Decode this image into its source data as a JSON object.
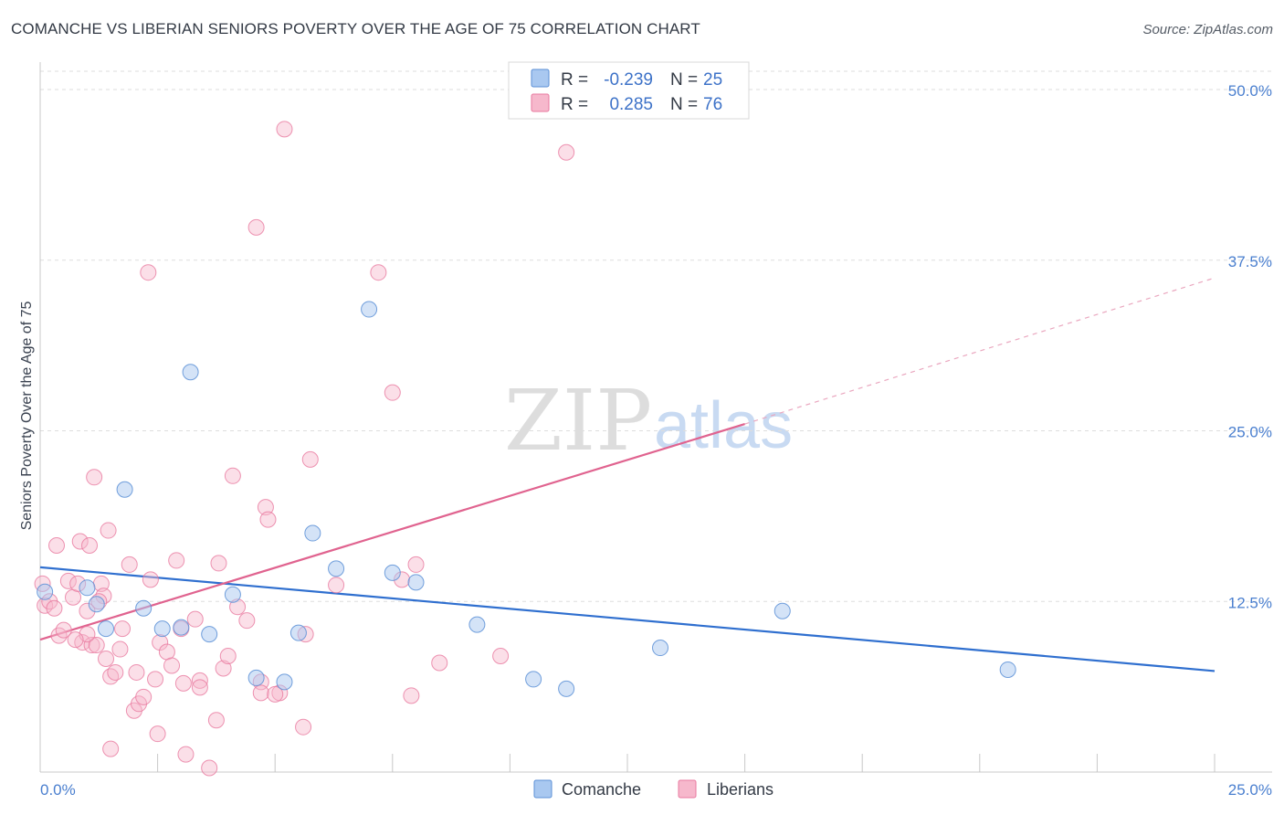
{
  "title": "COMANCHE VS LIBERIAN SENIORS POVERTY OVER THE AGE OF 75 CORRELATION CHART",
  "source": "Source: ZipAtlas.com",
  "watermark": {
    "zip": "ZIP",
    "atlas": "atlas"
  },
  "colors": {
    "comanche_fill": "#a9c8f0",
    "comanche_stroke": "#5b8fd6",
    "comanche_line": "#2f6fcf",
    "liberians_fill": "#f6b8cc",
    "liberians_stroke": "#e8799f",
    "liberians_line": "#e0638f",
    "tick_text": "#4a7fcf",
    "grid": "#dddddd"
  },
  "legend_top": [
    {
      "r_label": "R =",
      "r_value": "-0.239",
      "n_label": "N =",
      "n_value": "25"
    },
    {
      "r_label": "R =",
      "r_value": "0.285",
      "n_label": "N =",
      "n_value": "76"
    }
  ],
  "legend_bottom": [
    "Comanche",
    "Liberians"
  ],
  "chart_data": {
    "type": "scatter",
    "title": "COMANCHE VS LIBERIAN SENIORS POVERTY OVER THE AGE OF 75 CORRELATION CHART",
    "xlabel": "",
    "ylabel": "Seniors Poverty Over the Age of 75",
    "xlim": [
      0,
      25
    ],
    "ylim": [
      0,
      50
    ],
    "x_tick_labels": [
      "0.0%",
      "25.0%"
    ],
    "y_ticks": [
      12.5,
      25,
      37.5,
      50
    ],
    "y_tick_labels": [
      "12.5%",
      "25.0%",
      "37.5%",
      "50.0%"
    ],
    "grid": true,
    "legend_position": "top-center",
    "series": [
      {
        "name": "Comanche",
        "r": -0.239,
        "n": 25,
        "trend": {
          "x": [
            0,
            25
          ],
          "y": [
            15.0,
            7.4
          ]
        },
        "points": [
          [
            0.1,
            13.2
          ],
          [
            1.0,
            13.5
          ],
          [
            1.4,
            10.5
          ],
          [
            1.8,
            20.7
          ],
          [
            2.2,
            12.0
          ],
          [
            2.6,
            10.5
          ],
          [
            3.2,
            29.3
          ],
          [
            3.6,
            10.1
          ],
          [
            4.1,
            13.0
          ],
          [
            4.6,
            6.9
          ],
          [
            5.2,
            6.6
          ],
          [
            5.5,
            10.2
          ],
          [
            5.8,
            17.5
          ],
          [
            6.3,
            14.9
          ],
          [
            7.0,
            33.9
          ],
          [
            7.5,
            14.6
          ],
          [
            8.0,
            13.9
          ],
          [
            9.3,
            10.8
          ],
          [
            10.5,
            6.8
          ],
          [
            11.2,
            6.1
          ],
          [
            13.2,
            9.1
          ],
          [
            15.8,
            11.8
          ],
          [
            20.6,
            7.5
          ],
          [
            3.0,
            10.6
          ],
          [
            1.2,
            12.3
          ]
        ]
      },
      {
        "name": "Liberians",
        "r": 0.285,
        "n": 76,
        "trend": {
          "x": [
            0,
            15.0
          ],
          "y": [
            9.7,
            25.5
          ],
          "dashed_to": {
            "x": 25,
            "y": 36.2
          }
        },
        "points": [
          [
            0.05,
            13.8
          ],
          [
            0.1,
            12.2
          ],
          [
            0.2,
            12.5
          ],
          [
            0.3,
            12.0
          ],
          [
            0.35,
            16.6
          ],
          [
            0.4,
            10.0
          ],
          [
            0.5,
            10.4
          ],
          [
            0.6,
            14.0
          ],
          [
            0.7,
            12.8
          ],
          [
            0.8,
            13.8
          ],
          [
            0.85,
            16.9
          ],
          [
            0.9,
            9.5
          ],
          [
            1.0,
            11.8
          ],
          [
            1.05,
            16.6
          ],
          [
            1.1,
            9.3
          ],
          [
            1.15,
            21.6
          ],
          [
            1.2,
            9.3
          ],
          [
            1.3,
            13.8
          ],
          [
            1.35,
            12.9
          ],
          [
            1.4,
            8.3
          ],
          [
            1.45,
            17.7
          ],
          [
            1.5,
            7.0
          ],
          [
            1.6,
            7.3
          ],
          [
            1.7,
            9.0
          ],
          [
            1.75,
            10.5
          ],
          [
            1.9,
            15.2
          ],
          [
            2.0,
            4.5
          ],
          [
            2.05,
            7.3
          ],
          [
            2.1,
            5.0
          ],
          [
            2.2,
            5.5
          ],
          [
            2.3,
            36.6
          ],
          [
            2.35,
            14.1
          ],
          [
            2.45,
            6.8
          ],
          [
            2.5,
            2.8
          ],
          [
            2.55,
            9.5
          ],
          [
            2.7,
            8.8
          ],
          [
            2.8,
            7.8
          ],
          [
            2.9,
            15.5
          ],
          [
            3.0,
            10.5
          ],
          [
            3.05,
            6.5
          ],
          [
            3.1,
            1.3
          ],
          [
            3.3,
            11.2
          ],
          [
            3.4,
            6.7
          ],
          [
            3.6,
            0.3
          ],
          [
            3.75,
            3.8
          ],
          [
            3.8,
            15.3
          ],
          [
            3.9,
            7.6
          ],
          [
            4.0,
            8.5
          ],
          [
            4.1,
            21.7
          ],
          [
            4.2,
            12.1
          ],
          [
            4.4,
            11.1
          ],
          [
            4.6,
            39.9
          ],
          [
            4.7,
            6.6
          ],
          [
            4.8,
            19.4
          ],
          [
            4.85,
            18.5
          ],
          [
            5.1,
            5.8
          ],
          [
            5.2,
            47.1
          ],
          [
            5.6,
            3.3
          ],
          [
            5.65,
            10.1
          ],
          [
            5.75,
            22.9
          ],
          [
            6.3,
            13.7
          ],
          [
            7.2,
            36.6
          ],
          [
            7.5,
            27.8
          ],
          [
            7.7,
            14.1
          ],
          [
            7.9,
            5.6
          ],
          [
            8.0,
            15.2
          ],
          [
            8.5,
            8.0
          ],
          [
            9.8,
            8.5
          ],
          [
            11.2,
            45.4
          ],
          [
            1.5,
            1.7
          ],
          [
            1.0,
            10.1
          ],
          [
            0.75,
            9.7
          ],
          [
            1.25,
            12.5
          ],
          [
            4.7,
            5.8
          ],
          [
            5.0,
            5.7
          ],
          [
            3.4,
            6.2
          ]
        ]
      }
    ]
  }
}
